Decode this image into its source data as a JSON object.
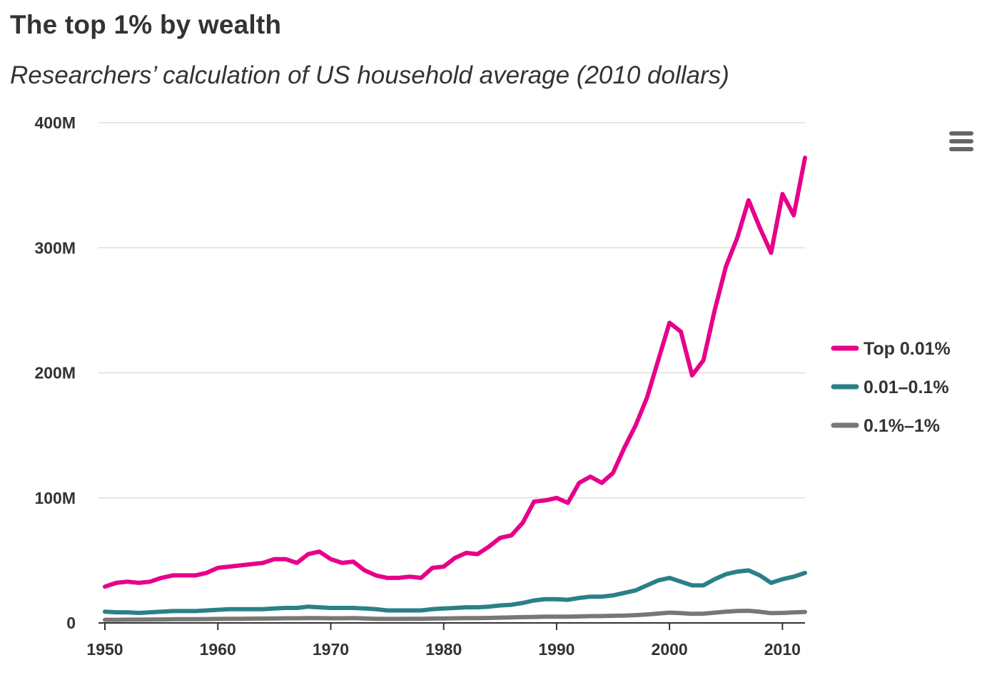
{
  "title": "The top 1% by wealth",
  "subtitle": "Researchers’ calculation of US household average (2010 dollars)",
  "menu": {
    "icon": "hamburger-menu-icon"
  },
  "chart_data": {
    "type": "line",
    "title": "The top 1% by wealth",
    "subtitle": "Researchers’ calculation of US household average (2010 dollars)",
    "xlabel": "",
    "ylabel": "",
    "xlim": [
      1950,
      2012
    ],
    "ylim": [
      0,
      400000000
    ],
    "x_ticks": [
      1950,
      1960,
      1970,
      1980,
      1990,
      2000,
      2010
    ],
    "x_tick_labels": [
      "1950",
      "1960",
      "1970",
      "1980",
      "1990",
      "2000",
      "2010"
    ],
    "y_ticks": [
      0,
      100000000,
      200000000,
      300000000,
      400000000
    ],
    "y_tick_labels": [
      "0",
      "100M",
      "200M",
      "300M",
      "400M"
    ],
    "grid": "horizontal",
    "legend_position": "right",
    "x": [
      1950,
      1951,
      1952,
      1953,
      1954,
      1955,
      1956,
      1957,
      1958,
      1959,
      1960,
      1961,
      1962,
      1963,
      1964,
      1965,
      1966,
      1967,
      1968,
      1969,
      1970,
      1971,
      1972,
      1973,
      1974,
      1975,
      1976,
      1977,
      1978,
      1979,
      1980,
      1981,
      1982,
      1983,
      1984,
      1985,
      1986,
      1987,
      1988,
      1989,
      1990,
      1991,
      1992,
      1993,
      1994,
      1995,
      1996,
      1997,
      1998,
      1999,
      2000,
      2001,
      2002,
      2003,
      2004,
      2005,
      2006,
      2007,
      2008,
      2009,
      2010,
      2011,
      2012
    ],
    "series": [
      {
        "name": "Top 0.01%",
        "color": "#e6008a",
        "values": [
          29,
          32,
          33,
          32,
          33,
          36,
          38,
          38,
          38,
          40,
          44,
          45,
          46,
          47,
          48,
          51,
          51,
          48,
          55,
          57,
          51,
          48,
          49,
          42,
          38,
          36,
          36,
          37,
          36,
          44,
          45,
          52,
          56,
          55,
          61,
          68,
          70,
          80,
          97,
          98,
          100,
          96,
          112,
          117,
          112,
          120,
          140,
          158,
          180,
          210,
          240,
          233,
          198,
          210,
          250,
          285,
          308,
          338,
          316,
          296,
          343,
          326,
          372
        ]
      },
      {
        "name": "0.01–0.1%",
        "color": "#2b8088",
        "values": [
          9,
          8.5,
          8.5,
          8,
          8.5,
          9,
          9.5,
          9.5,
          9.5,
          10,
          10.5,
          11,
          11,
          11,
          11,
          11.5,
          12,
          12,
          13,
          12.5,
          12,
          12,
          12,
          11.5,
          11,
          10,
          10,
          10,
          10,
          11,
          11.5,
          12,
          12.5,
          12.5,
          13,
          14,
          14.5,
          16,
          18,
          19,
          19,
          18.5,
          20,
          21,
          21,
          22,
          24,
          26,
          30,
          34,
          36,
          33,
          30,
          30,
          35,
          39,
          41,
          42,
          38,
          32,
          35,
          37,
          40
        ]
      },
      {
        "name": "0.1%–1%",
        "color": "#777777",
        "values": [
          2.5,
          2.5,
          2.6,
          2.6,
          2.7,
          2.8,
          2.9,
          3,
          3,
          3.1,
          3.2,
          3.3,
          3.3,
          3.4,
          3.5,
          3.6,
          3.7,
          3.7,
          3.9,
          3.9,
          3.7,
          3.7,
          3.8,
          3.6,
          3.3,
          3.2,
          3.2,
          3.3,
          3.3,
          3.5,
          3.6,
          3.7,
          3.8,
          3.9,
          4,
          4.2,
          4.4,
          4.6,
          4.8,
          5,
          5,
          5,
          5.2,
          5.4,
          5.5,
          5.7,
          5.9,
          6.2,
          6.8,
          7.5,
          8.2,
          7.8,
          7.3,
          7.4,
          8.2,
          9,
          9.6,
          9.7,
          8.9,
          7.8,
          8,
          8.4,
          8.8
        ]
      }
    ],
    "units_note": "values in millions of 2010 dollars"
  }
}
